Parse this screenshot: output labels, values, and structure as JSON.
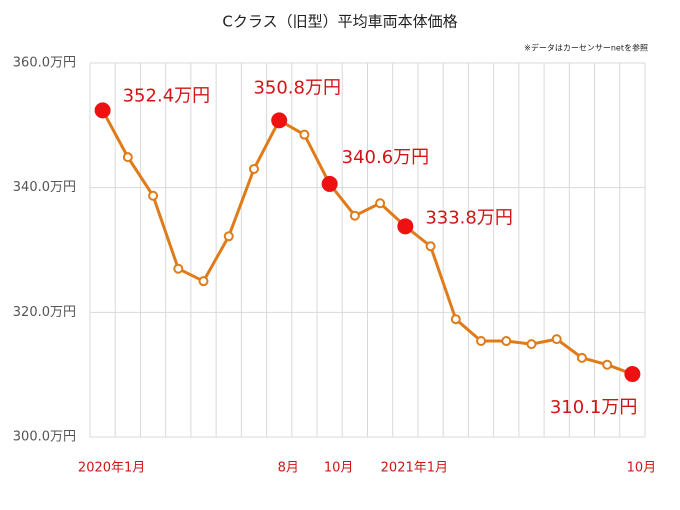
{
  "chart_data": {
    "type": "line",
    "title": "Cクラス（旧型）平均車両本体価格",
    "note": "※データはカーセンサーnetを参照",
    "categories": [
      "2020年1月",
      null,
      null,
      null,
      null,
      null,
      null,
      "8月",
      null,
      "10月",
      null,
      null,
      "2021年1月",
      null,
      null,
      null,
      null,
      null,
      null,
      null,
      null,
      "10月"
    ],
    "series": [
      {
        "name": "平均車両本体価格",
        "color": "#e07b1a",
        "highlight_color": "#ee1111",
        "values": [
          352.4,
          344.9,
          338.7,
          327.0,
          325.0,
          332.2,
          343.0,
          350.8,
          348.5,
          340.6,
          335.5,
          337.5,
          333.8,
          330.6,
          318.9,
          315.4,
          315.4,
          314.9,
          315.7,
          312.7,
          311.6,
          310.1
        ],
        "value_labels": [
          "352.4万円",
          null,
          null,
          null,
          null,
          null,
          null,
          "350.8万円",
          null,
          "340.6万円",
          null,
          null,
          "333.8万円",
          null,
          null,
          null,
          null,
          null,
          null,
          null,
          null,
          "310.1万円"
        ]
      }
    ],
    "ylim": [
      300,
      360
    ],
    "yticks": [
      {
        "value": 300,
        "label": "300.0万円"
      },
      {
        "value": 320,
        "label": "320.0万円"
      },
      {
        "value": 340,
        "label": "340.0万円"
      },
      {
        "value": 360,
        "label": "360.0万円"
      }
    ],
    "grid": true
  }
}
